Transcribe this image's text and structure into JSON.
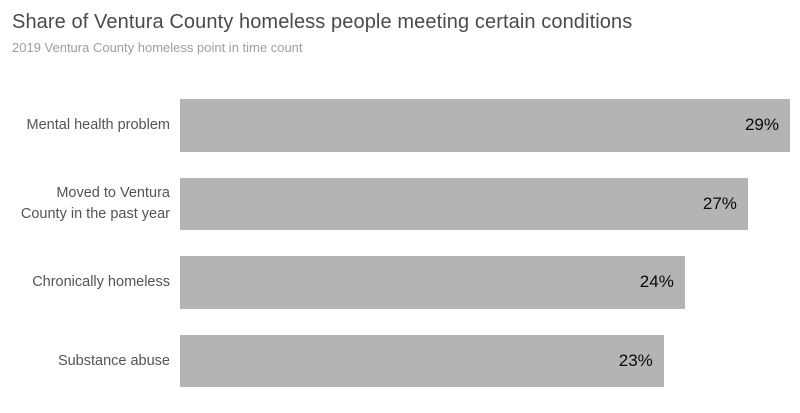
{
  "header": {
    "title": "Share of Ventura County homeless people meeting certain conditions",
    "subtitle": "2019 Ventura County homeless point in time count"
  },
  "chart_data": {
    "type": "bar",
    "orientation": "horizontal",
    "title": "Share of Ventura County homeless people meeting certain conditions",
    "subtitle": "2019 Ventura County homeless point in time count",
    "categories": [
      "Mental health problem",
      "Moved to Ventura\nCounty in the past year",
      "Chronically homeless",
      "Substance abuse"
    ],
    "values": [
      29,
      27,
      24,
      23
    ],
    "value_labels": [
      "29%",
      "27%",
      "24%",
      "23%"
    ],
    "xlabel": "",
    "ylabel": "",
    "xlim": [
      0,
      29
    ],
    "grid": false,
    "legend": false,
    "value_labels_position": "inside-end"
  },
  "colors": {
    "background": "#ffffff",
    "bar": "#b4b4b4",
    "title": "#4a4a4a",
    "subtitle": "#9e9e9e",
    "category_label": "#545454",
    "value_label": "#0a0a0a"
  }
}
